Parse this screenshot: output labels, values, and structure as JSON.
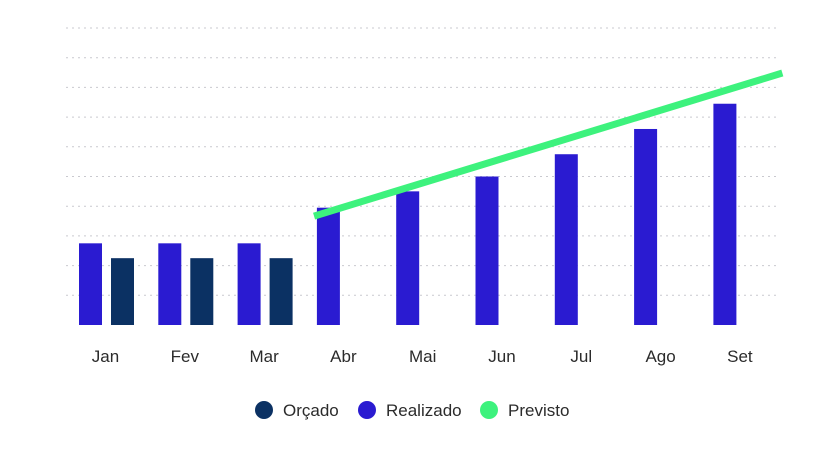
{
  "chart_data": {
    "type": "bar",
    "categories": [
      "Jan",
      "Fev",
      "Mar",
      "Abr",
      "Mai",
      "Jun",
      "Jul",
      "Ago",
      "Set"
    ],
    "series": [
      {
        "name": "Realizado",
        "kind": "bar",
        "color": "#2a1bd1",
        "values": [
          2.75,
          2.75,
          2.75,
          3.95,
          4.5,
          5.0,
          5.75,
          6.6,
          7.45
        ]
      },
      {
        "name": "Orçado",
        "kind": "bar",
        "color": "#0b3163",
        "values": [
          2.25,
          2.25,
          2.25,
          null,
          null,
          null,
          null,
          null,
          null
        ]
      },
      {
        "name": "Previsto",
        "kind": "line",
        "color": "#3df27d",
        "x_start": "Abr",
        "start_value": 3.7,
        "end_value": 8.45
      }
    ],
    "ylim": [
      0,
      10
    ],
    "grid": true,
    "title": "",
    "xlabel": "",
    "ylabel": "",
    "legend": {
      "placement": "bottom-center",
      "order": [
        "Orçado",
        "Realizado",
        "Previsto"
      ]
    }
  }
}
